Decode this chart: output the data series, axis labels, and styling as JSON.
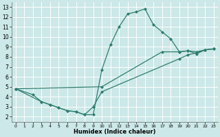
{
  "xlabel": "Humidex (Indice chaleur)",
  "xlim": [
    -0.5,
    23.5
  ],
  "ylim": [
    1.5,
    13.5
  ],
  "xticks": [
    0,
    1,
    2,
    3,
    4,
    5,
    6,
    7,
    8,
    9,
    10,
    11,
    12,
    13,
    14,
    15,
    16,
    17,
    18,
    19,
    20,
    21,
    22,
    23
  ],
  "yticks": [
    2,
    3,
    4,
    5,
    6,
    7,
    8,
    9,
    10,
    11,
    12,
    13
  ],
  "bg_color": "#cce8e8",
  "grid_color": "#ffffff",
  "line_color": "#2e7d6e",
  "series": [
    {
      "x": [
        0,
        2,
        3,
        4,
        5,
        6,
        7,
        8,
        9,
        10,
        11,
        12,
        13,
        14,
        15,
        16,
        17,
        18,
        19,
        20,
        21,
        22,
        23
      ],
      "y": [
        4.8,
        4.2,
        3.5,
        3.2,
        2.9,
        2.6,
        2.5,
        2.2,
        2.2,
        6.7,
        9.2,
        11.0,
        12.3,
        12.5,
        12.8,
        11.2,
        10.5,
        9.8,
        8.5,
        8.6,
        8.3,
        8.7,
        8.8
      ]
    },
    {
      "x": [
        0,
        10,
        17,
        19,
        20,
        21,
        22,
        23
      ],
      "y": [
        4.8,
        5.0,
        8.5,
        8.5,
        8.6,
        8.5,
        8.7,
        8.8
      ]
    },
    {
      "x": [
        0,
        3,
        4,
        5,
        6,
        7,
        8,
        9,
        10,
        19,
        20,
        21,
        22,
        23
      ],
      "y": [
        4.8,
        3.5,
        3.2,
        2.9,
        2.6,
        2.5,
        2.2,
        3.0,
        4.5,
        7.8,
        8.2,
        8.4,
        8.7,
        8.8
      ]
    }
  ]
}
